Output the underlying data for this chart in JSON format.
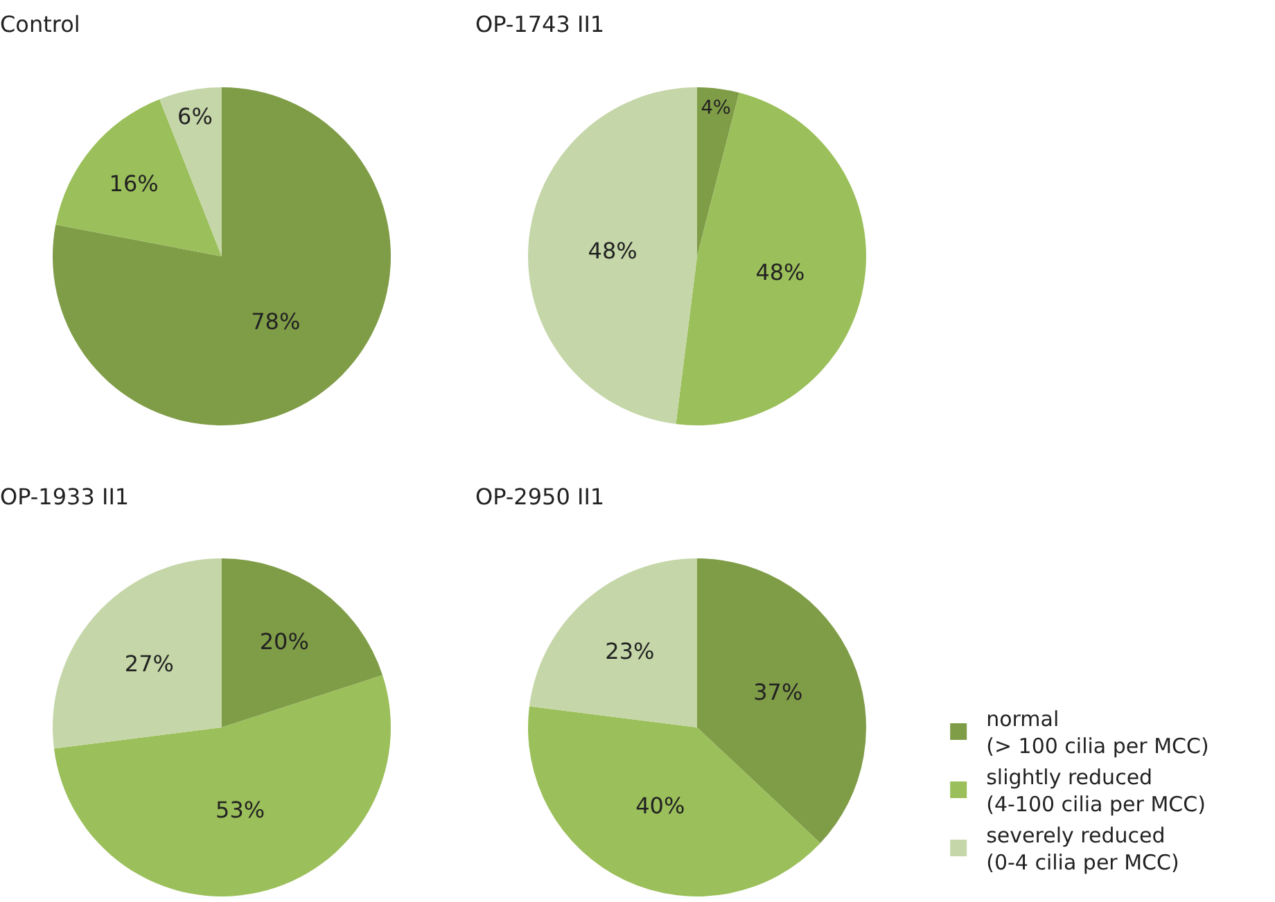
{
  "chart_data": [
    {
      "type": "pie",
      "title": "Control",
      "categories": [
        "normal\n(> 100 cilia per MCC)",
        "slightly reduced\n(4-100 cilia per MCC)",
        "severely reduced\n(0-4 cilia per MCC)"
      ],
      "values": [
        78,
        16,
        6
      ],
      "value_labels": [
        "78%",
        "16%",
        "6%"
      ],
      "colors": [
        "#7f9c47",
        "#9bbf5a",
        "#c5d6a8"
      ],
      "legend": "bottom right"
    },
    {
      "type": "pie",
      "title": "OP-1743 II1",
      "categories": [
        null,
        null,
        null
      ],
      "values": [
        4,
        48,
        48
      ],
      "value_labels": [
        "4%",
        "48%",
        "48%"
      ],
      "colors": [
        "#7f9c47",
        "#9bbf5a",
        "#c5d6a8"
      ]
    },
    {
      "type": "pie",
      "title": "OP-1933 II1",
      "categories": [
        null,
        null,
        null
      ],
      "values": [
        20,
        53,
        27
      ],
      "value_labels": [
        "20%",
        "53%",
        "27%"
      ],
      "colors": [
        "#7f9c47",
        "#9bbf5a",
        "#c5d6a8"
      ]
    },
    {
      "type": "pie",
      "title": "OP-2950 II1",
      "categories": [
        null,
        null,
        null
      ],
      "values": [
        37,
        40,
        23
      ],
      "value_labels": [
        "37%",
        "40%",
        "23%"
      ],
      "colors": [
        "#7f9c47",
        "#9bbf5a",
        "#c5d6a8"
      ]
    }
  ]
}
